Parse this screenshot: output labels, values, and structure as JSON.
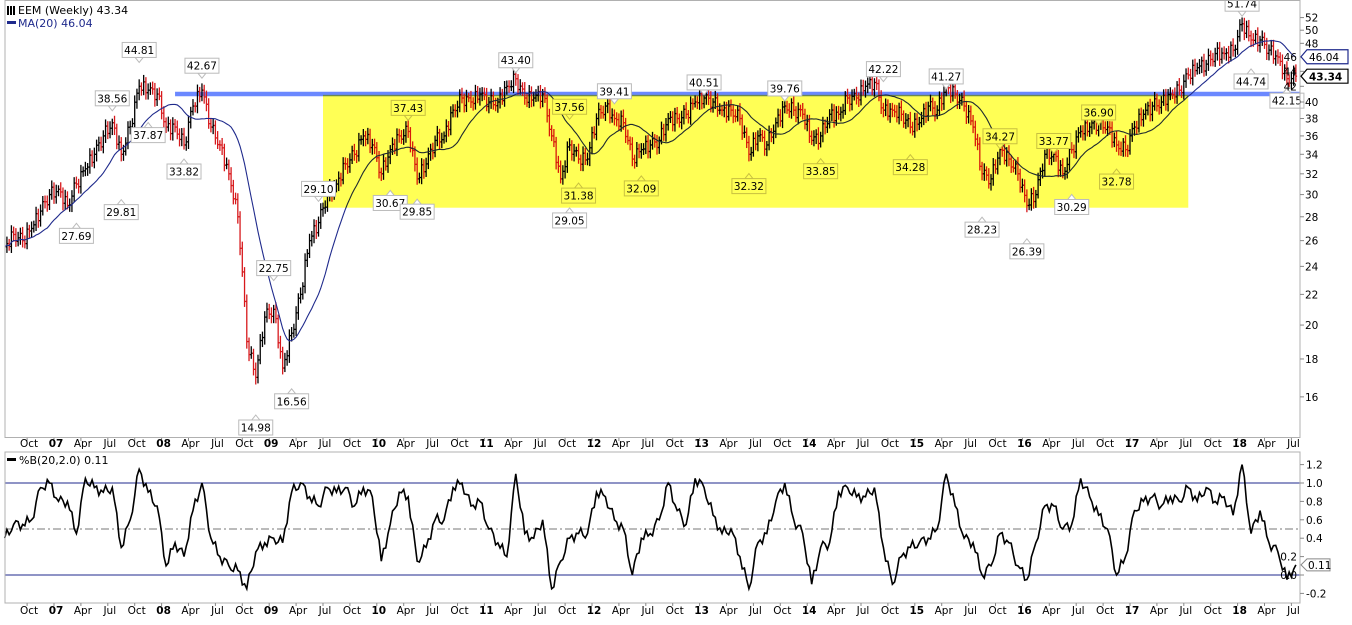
{
  "legend": {
    "price": "EEM (Weekly) 43.34",
    "ma": "MA(20) 46.04",
    "pctb": "%B(20,2.0) 0.11",
    "price_icon": "ohlc-bars-icon",
    "ma_color": "#1f2a8c"
  },
  "colors": {
    "up_bar": "#000000",
    "down_bar": "#d7191c",
    "ma": "#1f2a8c",
    "highlight_box": "#ffff55",
    "resistance_line": "#5b7bff",
    "band_lines": "#1f2a8c"
  },
  "chart_data": [
    {
      "type": "line",
      "title": "EEM (Weekly) 43.34",
      "y_scale": "log",
      "ylim": [
        14,
        54
      ],
      "y_ticks": [
        16,
        18,
        20,
        22,
        24,
        26,
        28,
        30,
        32,
        34,
        36,
        38,
        40,
        42,
        44,
        46,
        48,
        50,
        52
      ],
      "x_tick_labels": [
        "Oct",
        "07",
        "Apr",
        "Jul",
        "Oct",
        "08",
        "Apr",
        "Jul",
        "Oct",
        "09",
        "Apr",
        "Jul",
        "Oct",
        "10",
        "Apr",
        "Jul",
        "Oct",
        "11",
        "Apr",
        "Jul",
        "Oct",
        "12",
        "Apr",
        "Jul",
        "Oct",
        "13",
        "Apr",
        "Jul",
        "Oct",
        "14",
        "Apr",
        "Jul",
        "Oct",
        "15",
        "Apr",
        "Jul",
        "Oct",
        "16",
        "Apr",
        "Jul",
        "Oct",
        "17",
        "Apr",
        "Jul",
        "Oct",
        "18",
        "Apr",
        "Jul"
      ],
      "monthly_close": {
        "2006": [
          null,
          null,
          null,
          null,
          null,
          null,
          25.5,
          26.5,
          26,
          27,
          28.5,
          30
        ],
        "2007": [
          30.5,
          29,
          31,
          32.5,
          34,
          36,
          37.5,
          34,
          37,
          42,
          41.5,
          41
        ],
        "2008": [
          37,
          37,
          35,
          39.5,
          41.5,
          37,
          35,
          32,
          28,
          19,
          17,
          20.5
        ],
        "2009": [
          21,
          17.5,
          19.5,
          22,
          26,
          27.5,
          30,
          31,
          33,
          34,
          36,
          35
        ],
        "2010": [
          32,
          34.5,
          36,
          36.5,
          31.5,
          33,
          35.5,
          36,
          39,
          40.5,
          40,
          41
        ],
        "2011": [
          40,
          40,
          42,
          43,
          40.5,
          40.5,
          41,
          36,
          31.5,
          35,
          33.5,
          33.5
        ],
        "2012": [
          38,
          39.5,
          38,
          37.5,
          33.5,
          34.5,
          35,
          35.5,
          38,
          38,
          38.5,
          40
        ],
        "2013": [
          40.5,
          40,
          39,
          39,
          38,
          34,
          36,
          35,
          37.5,
          39.5,
          39,
          38.5
        ],
        "2014": [
          35.5,
          36,
          38.5,
          38.5,
          40.5,
          40.5,
          42,
          42.5,
          39,
          39,
          38.5,
          37
        ],
        "2015": [
          37.5,
          39.5,
          39,
          42,
          41,
          39.5,
          37,
          32,
          31.5,
          34.5,
          33.5,
          32
        ],
        "2016": [
          29,
          30,
          34,
          34,
          32,
          34.5,
          36.5,
          37,
          37.5,
          37,
          35,
          34.5
        ],
        "2017": [
          37,
          38.5,
          39.5,
          40,
          41,
          41.5,
          43.5,
          44.5,
          45,
          46.5,
          46.5,
          47
        ],
        "2018": [
          51,
          48.5,
          48.5,
          47,
          46,
          43,
          43.34,
          null,
          null,
          null,
          null,
          null
        ]
      },
      "overlays": {
        "moving_average": {
          "name": "MA(20)",
          "last": "46.04"
        },
        "last_price": "43.34",
        "resistance_level": 41,
        "resistance_from": "2008-02",
        "highlight_range": {
          "from": "2009-07",
          "to": "2017-07",
          "low": 28.8,
          "high": 40.9
        }
      },
      "annotations": [
        {
          "text": "44.81",
          "date": "2007-10",
          "side": "above"
        },
        {
          "text": "38.56",
          "date": "2007-07",
          "side": "above"
        },
        {
          "text": "37.87",
          "date": "2007-11",
          "side": "below"
        },
        {
          "text": "29.81",
          "date": "2007-08",
          "side": "below"
        },
        {
          "text": "27.69",
          "date": "2007-03",
          "side": "below"
        },
        {
          "text": "42.67",
          "date": "2008-05",
          "side": "above"
        },
        {
          "text": "33.82",
          "date": "2008-03",
          "side": "below"
        },
        {
          "text": "22.75",
          "date": "2009-01",
          "side": "above"
        },
        {
          "text": "14.98",
          "date": "2008-11",
          "side": "below"
        },
        {
          "text": "16.56",
          "date": "2009-03",
          "side": "below"
        },
        {
          "text": "29.10",
          "date": "2009-06",
          "side": "above"
        },
        {
          "text": "30.67",
          "date": "2010-02",
          "side": "below"
        },
        {
          "text": "37.43",
          "date": "2010-04",
          "side": "above"
        },
        {
          "text": "29.85",
          "date": "2010-05",
          "side": "below"
        },
        {
          "text": "43.40",
          "date": "2011-04",
          "side": "above"
        },
        {
          "text": "37.56",
          "date": "2011-10",
          "side": "above"
        },
        {
          "text": "29.05",
          "date": "2011-10",
          "side": "below"
        },
        {
          "text": "31.38",
          "date": "2011-11",
          "side": "below"
        },
        {
          "text": "39.41",
          "date": "2012-03",
          "side": "above"
        },
        {
          "text": "32.09",
          "date": "2012-06",
          "side": "below"
        },
        {
          "text": "40.51",
          "date": "2013-01",
          "side": "above"
        },
        {
          "text": "32.32",
          "date": "2013-06",
          "side": "below"
        },
        {
          "text": "39.76",
          "date": "2013-10",
          "side": "above"
        },
        {
          "text": "33.85",
          "date": "2014-02",
          "side": "below"
        },
        {
          "text": "42.22",
          "date": "2014-09",
          "side": "above"
        },
        {
          "text": "34.28",
          "date": "2014-12",
          "side": "below"
        },
        {
          "text": "41.27",
          "date": "2015-04",
          "side": "above"
        },
        {
          "text": "28.23",
          "date": "2015-08",
          "side": "below"
        },
        {
          "text": "34.27",
          "date": "2015-10",
          "side": "above"
        },
        {
          "text": "26.39",
          "date": "2016-01",
          "side": "below"
        },
        {
          "text": "33.77",
          "date": "2016-04",
          "side": "above"
        },
        {
          "text": "30.29",
          "date": "2016-06",
          "side": "below"
        },
        {
          "text": "36.90",
          "date": "2016-09",
          "side": "above"
        },
        {
          "text": "32.78",
          "date": "2016-11",
          "side": "below"
        },
        {
          "text": "51.74",
          "date": "2018-01",
          "side": "above"
        },
        {
          "text": "44.74",
          "date": "2018-02",
          "side": "below"
        },
        {
          "text": "42.15",
          "date": "2018-06",
          "side": "below"
        }
      ]
    },
    {
      "type": "line",
      "title": "%B(20,2.0) 0.11",
      "ylim": [
        -0.3,
        1.3
      ],
      "y_ticks": [
        "-0.2",
        "0.0",
        "0.2",
        "0.4",
        "0.6",
        "0.8",
        "1.0",
        "1.2"
      ],
      "reference_lines": [
        1.0,
        0.5,
        0.0
      ],
      "last_value": "0.11",
      "x_tick_labels": [
        "Oct",
        "07",
        "Apr",
        "Jul",
        "Oct",
        "08",
        "Apr",
        "Jul",
        "Oct",
        "09",
        "Apr",
        "Jul",
        "Oct",
        "10",
        "Apr",
        "Jul",
        "Oct",
        "11",
        "Apr",
        "Jul",
        "Oct",
        "12",
        "Apr",
        "Jul",
        "Oct",
        "13",
        "Apr",
        "Jul",
        "Oct",
        "14",
        "Apr",
        "Jul",
        "Oct",
        "15",
        "Apr",
        "Jul",
        "Oct",
        "16",
        "Apr",
        "Jul",
        "Oct",
        "17",
        "Apr",
        "Jul",
        "Oct",
        "18",
        "Apr",
        "Jul"
      ],
      "monthly_value": {
        "2006": [
          null,
          null,
          null,
          null,
          null,
          null,
          0.4,
          0.55,
          0.55,
          0.6,
          0.95,
          1.0
        ],
        "2007": [
          0.8,
          0.8,
          0.45,
          1.05,
          0.95,
          0.9,
          0.95,
          0.3,
          0.6,
          1.15,
          0.9,
          0.75
        ],
        "2008": [
          0.1,
          0.35,
          0.2,
          0.7,
          1.0,
          0.4,
          0.2,
          0.1,
          0.05,
          -0.15,
          0.25,
          0.35
        ],
        "2009": [
          0.4,
          0.35,
          0.9,
          1.0,
          0.85,
          0.75,
          0.95,
          0.9,
          0.95,
          0.75,
          0.95,
          0.85
        ],
        "2010": [
          0.15,
          0.55,
          0.9,
          0.85,
          0.15,
          0.3,
          0.6,
          0.6,
          0.95,
          1.0,
          0.75,
          0.8
        ],
        "2011": [
          0.5,
          0.35,
          0.2,
          1.1,
          0.45,
          0.4,
          0.6,
          -0.15,
          0.15,
          0.4,
          0.45,
          0.45
        ],
        "2012": [
          0.9,
          0.85,
          0.6,
          0.5,
          0.0,
          0.4,
          0.45,
          0.6,
          1.0,
          0.7,
          0.55,
          1.05
        ],
        "2013": [
          0.95,
          0.65,
          0.45,
          0.5,
          0.2,
          -0.15,
          0.35,
          0.45,
          0.8,
          1.0,
          0.6,
          0.45
        ],
        "2014": [
          -0.1,
          0.3,
          0.35,
          0.9,
          0.95,
          0.85,
          0.85,
          0.95,
          0.3,
          -0.1,
          0.2,
          0.3
        ],
        "2015": [
          0.35,
          0.4,
          0.5,
          1.1,
          0.75,
          0.4,
          0.35,
          0.0,
          0.1,
          0.45,
          0.35,
          0.1
        ],
        "2016": [
          -0.05,
          0.35,
          0.75,
          0.75,
          0.5,
          0.55,
          1.05,
          0.85,
          0.65,
          0.5,
          0.0,
          0.2
        ],
        "2017": [
          0.7,
          0.8,
          0.85,
          0.75,
          0.85,
          0.8,
          0.95,
          0.8,
          0.95,
          0.8,
          0.85,
          0.65
        ],
        "2018": [
          1.2,
          0.45,
          0.7,
          0.35,
          0.25,
          -0.05,
          0.11,
          null,
          null,
          null,
          null,
          null
        ]
      }
    }
  ]
}
